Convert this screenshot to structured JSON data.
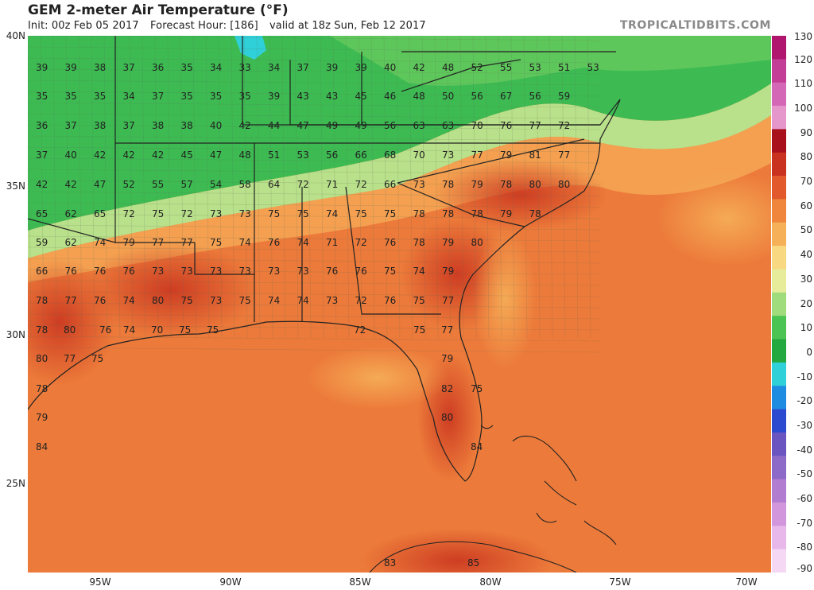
{
  "header": {
    "title": "GEM 2-meter Air Temperature (°F)",
    "init": "Init: 00z Feb 05 2017",
    "forecast_hour": "Forecast Hour: [186]",
    "valid": "valid at 18z Sun, Feb 12 2017",
    "brand": "TROPICALTIDBITS.COM"
  },
  "lat_labels": [
    "40N",
    "35N",
    "30N",
    "25N"
  ],
  "lon_labels": [
    "95W",
    "90W",
    "85W",
    "80W",
    "75W",
    "70W"
  ],
  "colorbar": {
    "labels": [
      "130",
      "120",
      "110",
      "100",
      "90",
      "80",
      "70",
      "60",
      "50",
      "40",
      "30",
      "20",
      "10",
      "0",
      "-10",
      "-20",
      "-30",
      "-40",
      "-50",
      "-60",
      "-70",
      "-80",
      "-90"
    ],
    "colors": [
      "#b0166e",
      "#c33c95",
      "#d568b6",
      "#e597cc",
      "#a8101c",
      "#c8321e",
      "#e25a2c",
      "#f0863c",
      "#f6b058",
      "#f8d880",
      "#e6ec9a",
      "#a0dc7c",
      "#4cc454",
      "#24a840",
      "#30d0d8",
      "#1e8ce0",
      "#2c4ad0",
      "#6a54c0",
      "#8e6ac8",
      "#b27cd0",
      "#d296dc",
      "#e8b8ea",
      "#f4d8f4"
    ]
  },
  "station_values": [
    [
      "39",
      "39",
      "38",
      "37",
      "36",
      "35",
      "34",
      "33",
      "34",
      "37",
      "39",
      "39",
      "40",
      "42",
      "48",
      "52",
      "55",
      "53",
      "51",
      "53"
    ],
    [
      "35",
      "35",
      "35",
      "34",
      "37",
      "35",
      "35",
      "35",
      "39",
      "43",
      "43",
      "45",
      "46",
      "48",
      "50",
      "56",
      "67",
      "56",
      "59"
    ],
    [
      "36",
      "37",
      "38",
      "37",
      "38",
      "38",
      "40",
      "42",
      "44",
      "47",
      "49",
      "49",
      "56",
      "63",
      "63",
      "70",
      "76",
      "77",
      "72"
    ],
    [
      "37",
      "40",
      "42",
      "42",
      "42",
      "45",
      "47",
      "48",
      "51",
      "53",
      "56",
      "66",
      "68",
      "70",
      "73",
      "77",
      "79",
      "81",
      "77"
    ],
    [
      "42",
      "42",
      "47",
      "52",
      "55",
      "57",
      "54",
      "58",
      "64",
      "72",
      "71",
      "72",
      "66",
      "73",
      "78",
      "79",
      "78",
      "80",
      "80"
    ],
    [
      "65",
      "62",
      "65",
      "72",
      "75",
      "72",
      "73",
      "73",
      "75",
      "75",
      "74",
      "75",
      "75",
      "78",
      "78",
      "78",
      "79",
      "78"
    ],
    [
      "59",
      "62",
      "74",
      "79",
      "77",
      "77",
      "75",
      "74",
      "76",
      "74",
      "71",
      "72",
      "76",
      "78",
      "79",
      "80"
    ],
    [
      "66",
      "76",
      "76",
      "76",
      "73",
      "73",
      "73",
      "73",
      "73",
      "73",
      "76",
      "76",
      "75",
      "74",
      "79"
    ],
    [
      "78",
      "77",
      "76",
      "74",
      "80",
      "75",
      "73",
      "75",
      "74",
      "74",
      "73",
      "72",
      "76",
      "75",
      "77"
    ],
    [
      "78",
      "80",
      "76",
      "74",
      "70",
      "75",
      "75",
      "72",
      "75",
      "77"
    ],
    [
      "80",
      "77",
      "75",
      "79"
    ],
    [
      "78",
      "82",
      "75"
    ],
    [
      "79",
      "80"
    ],
    [
      "84",
      "84"
    ],
    [
      "83",
      "85"
    ]
  ]
}
